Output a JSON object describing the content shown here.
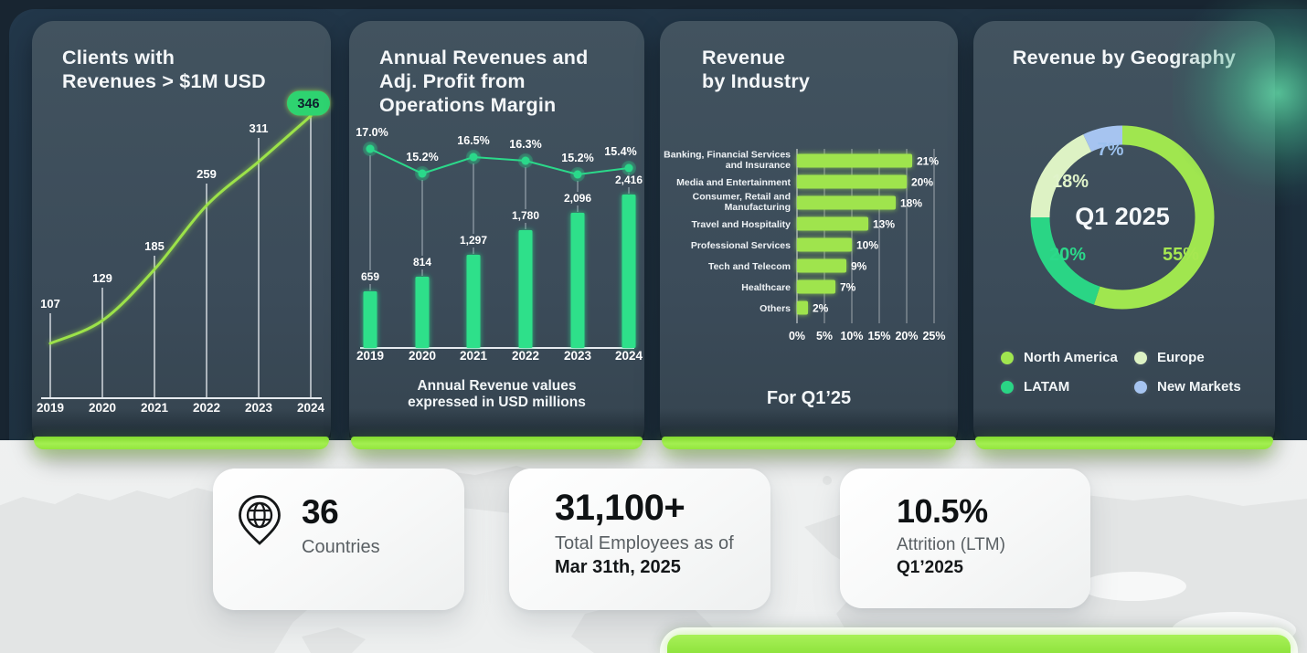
{
  "theme": {
    "navy_background": "#1f3140",
    "card_background": "#3b4b59",
    "lime": "#9fe44d",
    "emerald": "#2bd98a",
    "pale_green": "#ddf2c4",
    "light_blue": "#a6c4f0",
    "badge_green": "#2dd36f",
    "accent_bar": "#9aec48"
  },
  "cards": {
    "clients": {
      "title_line1": "Clients with",
      "title_line2": "Revenues > $1M USD"
    },
    "revenues": {
      "title_line1": "Annual Revenues and",
      "title_line2": "Adj. Profit from",
      "title_line3": "Operations Margin",
      "footnote_line1": "Annual Revenue values",
      "footnote_line2": "expressed in USD millions"
    },
    "industry": {
      "title_line1": "Revenue",
      "title_line2": "by Industry",
      "footer": "For Q1’25"
    },
    "geography": {
      "title": "Revenue by Geography"
    }
  },
  "chart_data": [
    {
      "id": "clients-growth",
      "type": "line",
      "title": "Clients with Revenues > $1M USD",
      "categories": [
        "2019",
        "2020",
        "2021",
        "2022",
        "2023",
        "2024"
      ],
      "values": [
        107,
        129,
        185,
        259,
        311,
        346
      ],
      "value_labels": [
        "107",
        "129",
        "185",
        "259",
        "311"
      ],
      "highlight": {
        "category": "2024",
        "value": 346,
        "label": "346"
      },
      "line_color": "#9ce24a",
      "highlight_badge_color": "#2dd36f"
    },
    {
      "id": "annual-revenue-margin",
      "type": "bar",
      "title": "Annual Revenues and Adj. Profit from Operations Margin",
      "categories": [
        "2019",
        "2020",
        "2021",
        "2022",
        "2023",
        "2024"
      ],
      "series": [
        {
          "name": "Annual Revenue (USD millions)",
          "render": "bar",
          "values": [
            659,
            814,
            1297,
            1780,
            2096,
            2416
          ],
          "value_labels": [
            "659",
            "814",
            "1,297",
            "1,780",
            "2,096",
            "2,416"
          ],
          "color": "#2ee08a"
        },
        {
          "name": "Adj. Profit from Operations Margin",
          "render": "line",
          "unit": "%",
          "values": [
            17.0,
            15.2,
            16.5,
            16.3,
            15.2,
            15.4
          ],
          "value_labels": [
            "17.0%",
            "15.2%",
            "16.5%",
            "16.3%",
            "15.2%",
            "15.4%"
          ],
          "color": "#2bd98a"
        }
      ],
      "footnote": "Annual Revenue values expressed in USD millions"
    },
    {
      "id": "revenue-by-industry",
      "type": "bar",
      "orientation": "horizontal",
      "title": "Revenue by Industry",
      "period": "For Q1’25",
      "categories": [
        "Banking, Financial Services and Insurance",
        "Media and Entertainment",
        "Consumer, Retail and Manufacturing",
        "Travel and Hospitality",
        "Professional Services",
        "Tech and Telecom",
        "Healthcare",
        "Others"
      ],
      "category_lines": [
        [
          "Banking, Financial Services",
          "and Insurance"
        ],
        [
          "Media and Entertainment"
        ],
        [
          "Consumer, Retail and",
          "Manufacturing"
        ],
        [
          "Travel and Hospitality"
        ],
        [
          "Professional Services"
        ],
        [
          "Tech and Telecom"
        ],
        [
          "Healthcare"
        ],
        [
          "Others"
        ]
      ],
      "values": [
        21,
        20,
        18,
        13,
        10,
        9,
        7,
        2
      ],
      "value_labels": [
        "21%",
        "20%",
        "18%",
        "13%",
        "10%",
        "9%",
        "7%",
        "2%"
      ],
      "xticks": [
        "0%",
        "5%",
        "10%",
        "15%",
        "20%",
        "25%"
      ],
      "xlim": [
        0,
        25
      ],
      "bar_color": "#9fe44d"
    },
    {
      "id": "revenue-by-geography",
      "type": "pie",
      "donut": true,
      "title": "Revenue by Geography",
      "center_label": "Q1 2025",
      "segments": [
        {
          "label": "North America",
          "value": 55,
          "color": "#a0e64f",
          "text_color": "#a6e751"
        },
        {
          "label": "LATAM",
          "value": 20,
          "color": "#2ad585",
          "text_color": "#2bd98a"
        },
        {
          "label": "Europe",
          "value": 18,
          "color": "#ddf2c4",
          "text_color": "#e0f3ca"
        },
        {
          "label": "New Markets",
          "value": 7,
          "color": "#a6c4f0",
          "text_color": "#9cc1ee"
        }
      ],
      "legend_order": [
        "North America",
        "Europe",
        "LATAM",
        "New Markets"
      ],
      "legend_position": "bottom"
    }
  ],
  "stats": [
    {
      "icon": "globe-pin-icon",
      "value": "36",
      "label": "Countries"
    },
    {
      "value": "31,100+",
      "label": "Total Employees as of",
      "sublabel": "Mar 31th, 2025"
    },
    {
      "value": "10.5%",
      "label": "Attrition (LTM)",
      "sublabel": "Q1’2025"
    }
  ]
}
